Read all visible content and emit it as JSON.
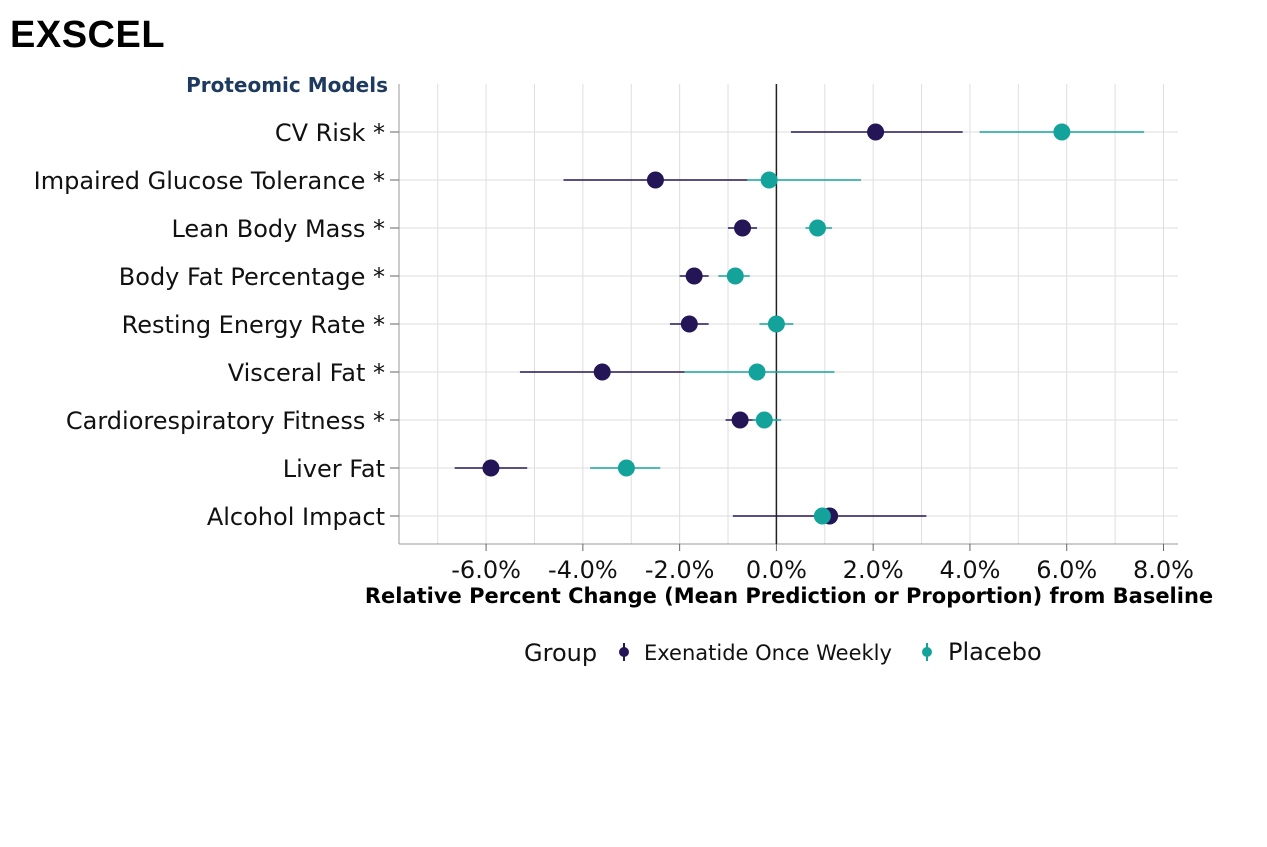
{
  "title": "EXSCEL",
  "colors": {
    "exenatide": "#231556",
    "placebo": "#14a39a",
    "grid": "#dedede",
    "zero_line": "#222222"
  },
  "chart_data": {
    "type": "scatter",
    "section_label": "Proteomic Models",
    "categories": [
      "CV Risk *",
      "Impaired Glucose Tolerance *",
      "Lean Body Mass *",
      "Body Fat Percentage *",
      "Resting Energy Rate *",
      "Visceral Fat *",
      "Cardiorespiratory Fitness *",
      "Liver Fat",
      "Alcohol Impact"
    ],
    "xlabel": "Relative Percent Change (Mean Prediction or Proportion) from Baseline",
    "xlim": [
      -7.8,
      8.3
    ],
    "xticks": [
      -6,
      -4,
      -2,
      0,
      2,
      4,
      6,
      8
    ],
    "tick_labels": [
      "-6.0%",
      "-4.0%",
      "-2.0%",
      "0.0%",
      "2.0%",
      "4.0%",
      "6.0%",
      "8.0%"
    ],
    "grid": true,
    "legend": {
      "title": "Group",
      "position": "bottom"
    },
    "series": [
      {
        "name": "Exenatide Once Weekly",
        "color": "#231556",
        "points": [
          {
            "mean": 2.05,
            "low": 0.3,
            "high": 3.85
          },
          {
            "mean": -2.5,
            "low": -4.4,
            "high": -0.6
          },
          {
            "mean": -0.7,
            "low": -1.0,
            "high": -0.4
          },
          {
            "mean": -1.7,
            "low": -2.0,
            "high": -1.4
          },
          {
            "mean": -1.8,
            "low": -2.2,
            "high": -1.4
          },
          {
            "mean": -3.6,
            "low": -5.3,
            "high": -1.9
          },
          {
            "mean": -0.75,
            "low": -1.05,
            "high": -0.45
          },
          {
            "mean": -5.9,
            "low": -6.65,
            "high": -5.15
          },
          {
            "mean": 1.1,
            "low": -0.9,
            "high": 3.1
          }
        ]
      },
      {
        "name": "Placebo",
        "color": "#14a39a",
        "points": [
          {
            "mean": 5.9,
            "low": 4.2,
            "high": 7.6
          },
          {
            "mean": -0.15,
            "low": -0.6,
            "high": 1.75
          },
          {
            "mean": 0.85,
            "low": 0.6,
            "high": 1.15
          },
          {
            "mean": -0.85,
            "low": -1.2,
            "high": -0.55
          },
          {
            "mean": 0.0,
            "low": -0.35,
            "high": 0.35
          },
          {
            "mean": -0.4,
            "low": -1.9,
            "high": 1.2
          },
          {
            "mean": -0.25,
            "low": -0.5,
            "high": 0.1
          },
          {
            "mean": -3.1,
            "low": -3.85,
            "high": -2.4
          },
          {
            "mean": 0.95,
            "low": 0.8,
            "high": 1.1
          }
        ]
      }
    ]
  }
}
